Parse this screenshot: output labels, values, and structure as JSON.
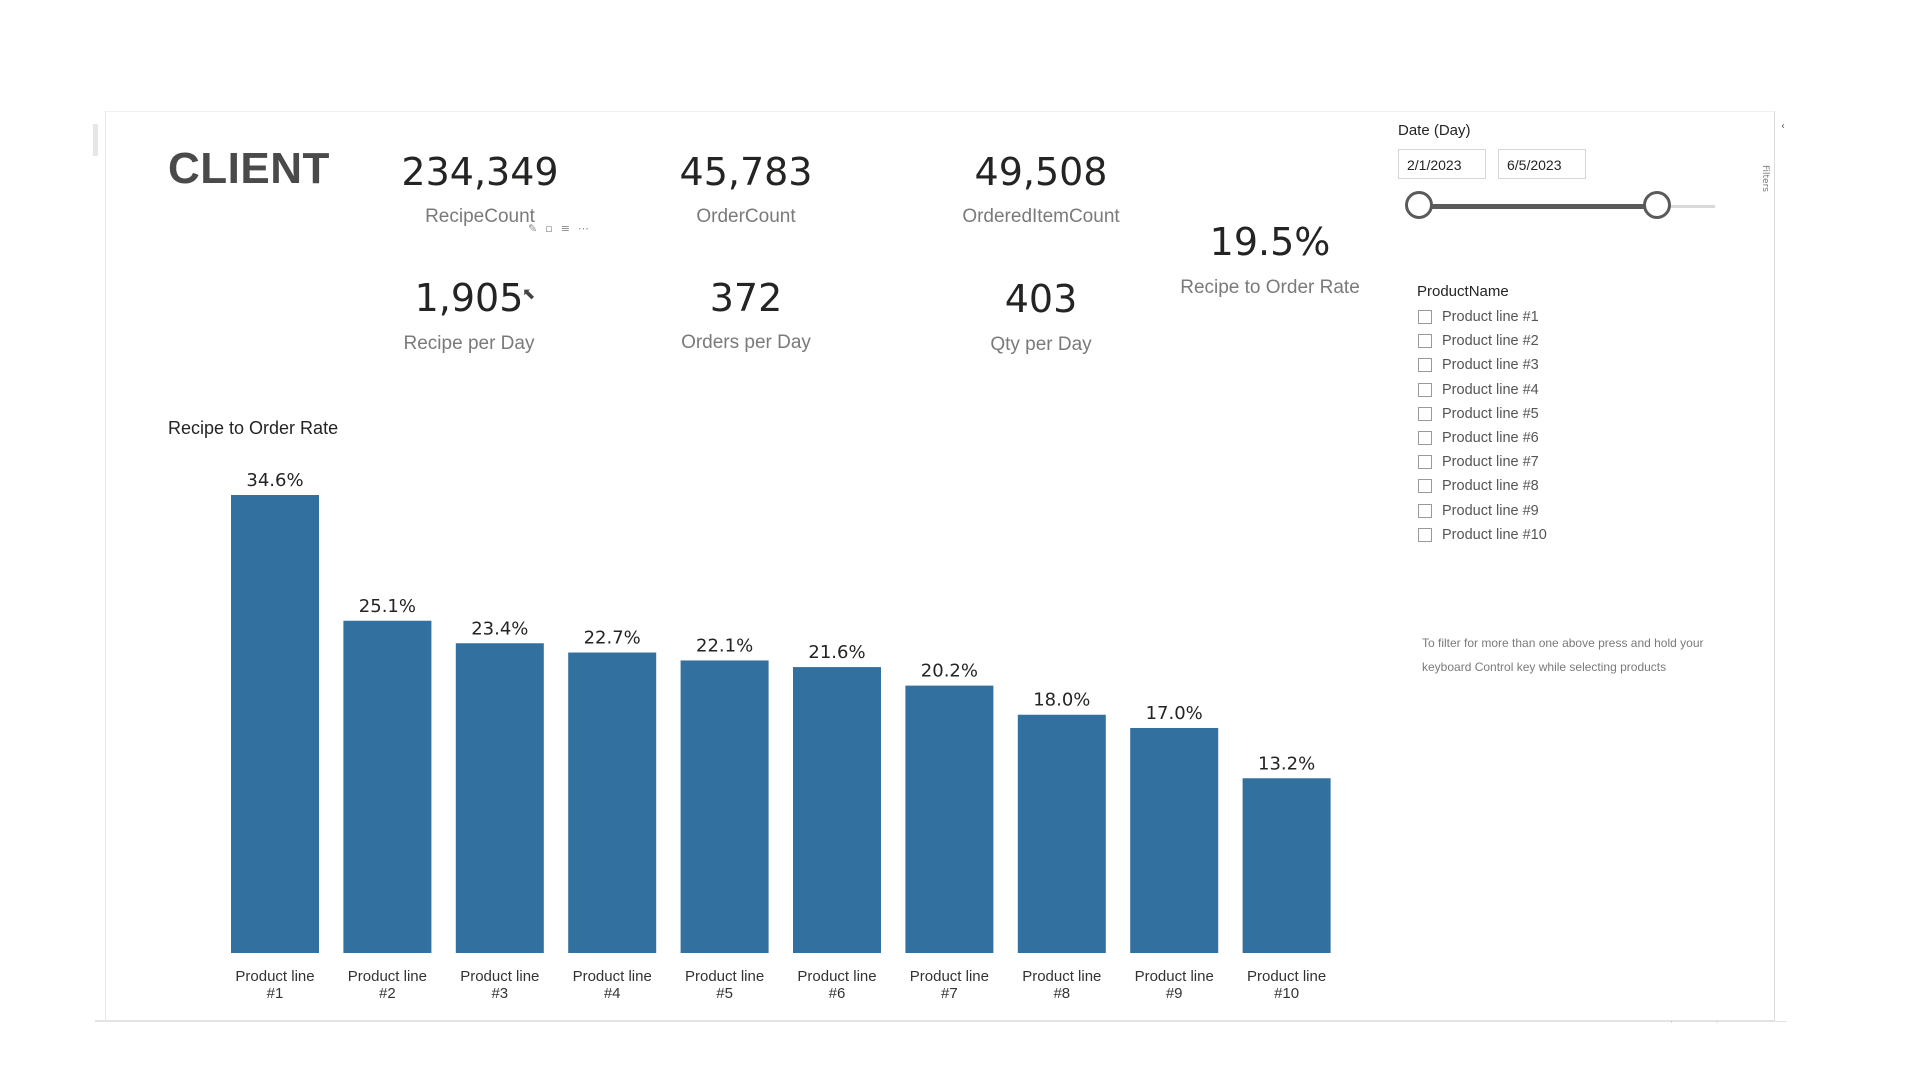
{
  "logo": "CLIENT",
  "kpis": [
    {
      "value": "234,349",
      "label": "RecipeCount"
    },
    {
      "value": "45,783",
      "label": "OrderCount"
    },
    {
      "value": "49,508",
      "label": "OrderedItemCount"
    },
    {
      "value": "1,905",
      "label": "Recipe per Day"
    },
    {
      "value": "372",
      "label": "Orders per Day"
    },
    {
      "value": "403",
      "label": "Qty per Day"
    },
    {
      "value": "19.5%",
      "label": "Recipe to Order Rate"
    }
  ],
  "visual_toolbar_icons": [
    "pin-icon",
    "copy-icon",
    "filter-icon",
    "more-options-icon"
  ],
  "date_slicer": {
    "title": "Date (Day)",
    "start": "2/1/2023",
    "end": "6/5/2023"
  },
  "product_slicer": {
    "title": "ProductName",
    "items": [
      "Product line #1",
      "Product line #2",
      "Product line #3",
      "Product line #4",
      "Product line #5",
      "Product line #6",
      "Product line #7",
      "Product line #8",
      "Product line #9",
      "Product line #10"
    ]
  },
  "hint": "To filter for more than one above press and hold your keyboard Control key while selecting products",
  "filters_pane_label": "Filters",
  "colors": {
    "bar": "#31709f",
    "text": "#252423",
    "muted": "#7a7a7a"
  },
  "chart_data": {
    "type": "bar",
    "title": "Recipe to Order Rate",
    "categories": [
      "Product line #1",
      "Product line #2",
      "Product line #3",
      "Product line #4",
      "Product line #5",
      "Product line #6",
      "Product line #7",
      "Product line #8",
      "Product line #9",
      "Product line #10"
    ],
    "category_lines": [
      [
        "Product line",
        "#1"
      ],
      [
        "Product line",
        "#2"
      ],
      [
        "Product line",
        "#3"
      ],
      [
        "Product line",
        "#4"
      ],
      [
        "Product line",
        "#5"
      ],
      [
        "Product line",
        "#6"
      ],
      [
        "Product line",
        "#7"
      ],
      [
        "Product line",
        "#8"
      ],
      [
        "Product line",
        "#9"
      ],
      [
        "Product line",
        "#10"
      ]
    ],
    "values": [
      34.6,
      25.1,
      23.4,
      22.7,
      22.1,
      21.6,
      20.2,
      18.0,
      17.0,
      13.2
    ],
    "value_labels": [
      "34.6%",
      "25.1%",
      "23.4%",
      "22.7%",
      "22.1%",
      "21.6%",
      "20.2%",
      "18.0%",
      "17.0%",
      "13.2%"
    ],
    "unit": "%",
    "ylim": [
      0,
      34.6
    ],
    "grid": false,
    "legend": "none"
  }
}
